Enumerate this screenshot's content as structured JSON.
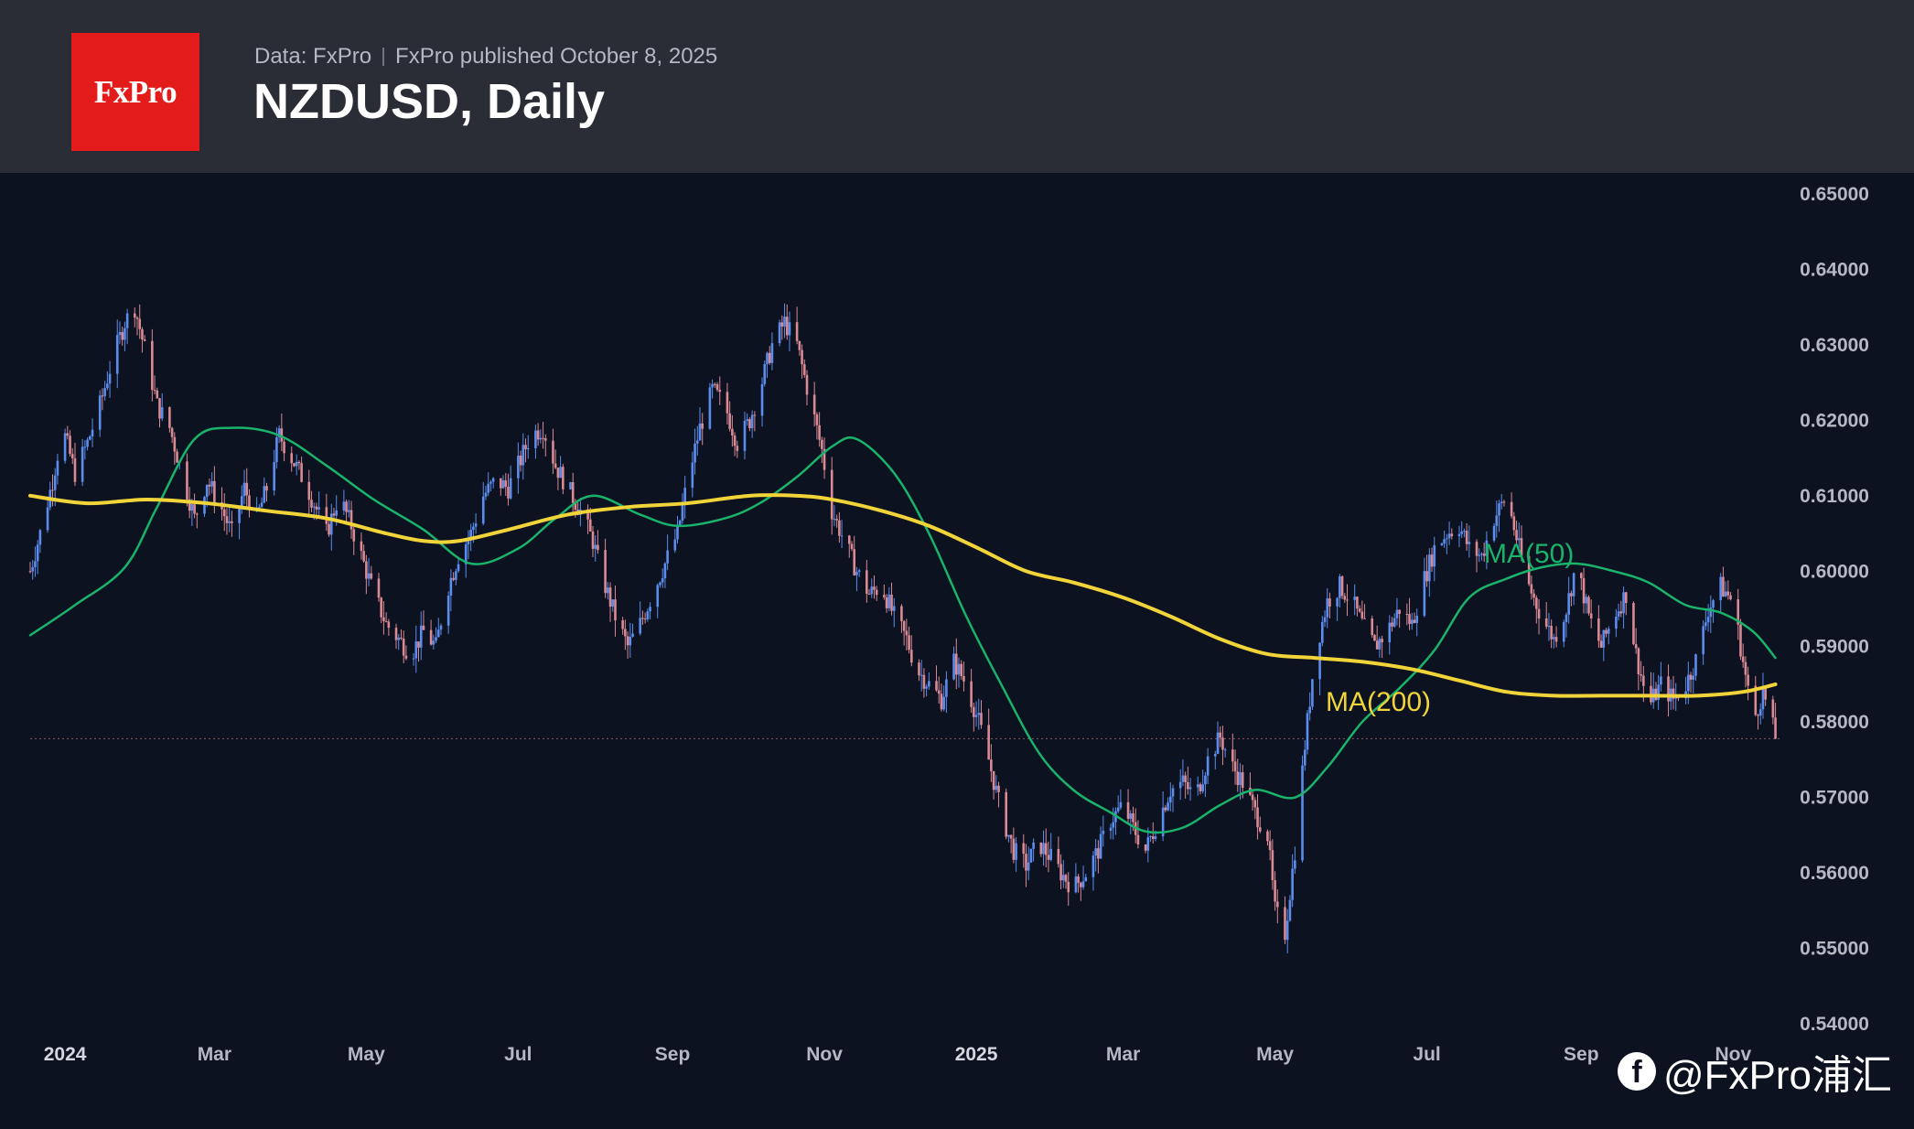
{
  "header": {
    "logo_text": "FxPro",
    "data_source": "Data: FxPro",
    "published": "FxPro published October 8, 2025",
    "title": "NZDUSD, Daily"
  },
  "watermark": {
    "icon": "facebook-icon",
    "text": "@FxPro浦汇"
  },
  "colors": {
    "background": "#0d1220",
    "header": "#2a2d36",
    "logo": "#e31b1b",
    "up_candle": "#5b8dee",
    "down_candle": "#d98a93",
    "ma50": "#19b36b",
    "ma200": "#f0d43a",
    "axis_text": "#b4b8c2"
  },
  "chart_data": {
    "type": "candlestick",
    "symbol": "NZDUSD",
    "timeframe": "Daily",
    "x_range": [
      "2023-12-18",
      "2025-11-20"
    ],
    "ylim": [
      0.54,
      0.65
    ],
    "yticks": [
      "0.65000",
      "0.64000",
      "0.63000",
      "0.62000",
      "0.61000",
      "0.60000",
      "0.59000",
      "0.58000",
      "0.57000",
      "0.56000",
      "0.55000",
      "0.54000"
    ],
    "xticks": [
      {
        "date": "2024-01-01",
        "label": "2024",
        "bold": true
      },
      {
        "date": "2024-03-01",
        "label": "Mar"
      },
      {
        "date": "2024-05-01",
        "label": "May"
      },
      {
        "date": "2024-07-01",
        "label": "Jul"
      },
      {
        "date": "2024-09-01",
        "label": "Sep"
      },
      {
        "date": "2024-11-01",
        "label": "Nov"
      },
      {
        "date": "2025-01-01",
        "label": "2025",
        "bold": true
      },
      {
        "date": "2025-03-01",
        "label": "Mar"
      },
      {
        "date": "2025-05-01",
        "label": "May"
      },
      {
        "date": "2025-07-01",
        "label": "Jul"
      },
      {
        "date": "2025-09-01",
        "label": "Sep"
      },
      {
        "date": "2025-11-01",
        "label": "Nov"
      }
    ],
    "last_price": 0.5778,
    "close_path": [
      [
        "2023-12-18",
        0.6
      ],
      [
        "2023-12-22",
        0.605
      ],
      [
        "2023-12-27",
        0.612
      ],
      [
        "2023-12-31",
        0.619
      ],
      [
        "2024-01-05",
        0.613
      ],
      [
        "2024-01-10",
        0.617
      ],
      [
        "2024-01-15",
        0.622
      ],
      [
        "2024-01-20",
        0.628
      ],
      [
        "2024-01-25",
        0.633
      ],
      [
        "2024-01-29",
        0.635
      ],
      [
        "2024-02-03",
        0.628
      ],
      [
        "2024-02-07",
        0.622
      ],
      [
        "2024-02-12",
        0.619
      ],
      [
        "2024-02-17",
        0.613
      ],
      [
        "2024-02-22",
        0.607
      ],
      [
        "2024-02-27",
        0.612
      ],
      [
        "2024-03-03",
        0.609
      ],
      [
        "2024-03-08",
        0.605
      ],
      [
        "2024-03-13",
        0.611
      ],
      [
        "2024-03-18",
        0.607
      ],
      [
        "2024-03-22",
        0.611
      ],
      [
        "2024-03-27",
        0.618
      ],
      [
        "2024-04-01",
        0.615
      ],
      [
        "2024-04-06",
        0.612
      ],
      [
        "2024-04-10",
        0.609
      ],
      [
        "2024-04-15",
        0.605
      ],
      [
        "2024-04-20",
        0.61
      ],
      [
        "2024-04-25",
        0.606
      ],
      [
        "2024-04-30",
        0.601
      ],
      [
        "2024-05-04",
        0.597
      ],
      [
        "2024-05-09",
        0.593
      ],
      [
        "2024-05-14",
        0.591
      ],
      [
        "2024-05-19",
        0.589
      ],
      [
        "2024-05-24",
        0.592
      ],
      [
        "2024-05-29",
        0.59
      ],
      [
        "2024-06-02",
        0.597
      ],
      [
        "2024-06-07",
        0.602
      ],
      [
        "2024-06-12",
        0.605
      ],
      [
        "2024-06-17",
        0.61
      ],
      [
        "2024-06-22",
        0.612
      ],
      [
        "2024-06-27",
        0.611
      ],
      [
        "2024-07-01",
        0.614
      ],
      [
        "2024-07-06",
        0.618
      ],
      [
        "2024-07-11",
        0.619
      ],
      [
        "2024-07-16",
        0.614
      ],
      [
        "2024-07-21",
        0.611
      ],
      [
        "2024-07-26",
        0.608
      ],
      [
        "2024-07-31",
        0.604
      ],
      [
        "2024-08-04",
        0.599
      ],
      [
        "2024-08-09",
        0.594
      ],
      [
        "2024-08-14",
        0.59
      ],
      [
        "2024-08-19",
        0.593
      ],
      [
        "2024-08-24",
        0.597
      ],
      [
        "2024-08-29",
        0.601
      ],
      [
        "2024-09-03",
        0.605
      ],
      [
        "2024-09-07",
        0.612
      ],
      [
        "2024-09-12",
        0.619
      ],
      [
        "2024-09-17",
        0.624
      ],
      [
        "2024-09-22",
        0.622
      ],
      [
        "2024-09-27",
        0.617
      ],
      [
        "2024-10-02",
        0.62
      ],
      [
        "2024-10-06",
        0.624
      ],
      [
        "2024-10-11",
        0.63
      ],
      [
        "2024-10-16",
        0.633
      ],
      [
        "2024-10-21",
        0.63
      ],
      [
        "2024-10-26",
        0.623
      ],
      [
        "2024-10-31",
        0.616
      ],
      [
        "2024-11-04",
        0.608
      ],
      [
        "2024-11-09",
        0.604
      ],
      [
        "2024-11-14",
        0.6
      ],
      [
        "2024-11-19",
        0.597
      ],
      [
        "2024-11-24",
        0.598
      ],
      [
        "2024-11-29",
        0.594
      ],
      [
        "2024-12-04",
        0.591
      ],
      [
        "2024-12-08",
        0.587
      ],
      [
        "2024-12-13",
        0.585
      ],
      [
        "2024-12-18",
        0.583
      ],
      [
        "2024-12-23",
        0.588
      ],
      [
        "2024-12-28",
        0.585
      ],
      [
        "2025-01-02",
        0.58
      ],
      [
        "2025-01-06",
        0.575
      ],
      [
        "2025-01-11",
        0.568
      ],
      [
        "2025-01-16",
        0.563
      ],
      [
        "2025-01-21",
        0.561
      ],
      [
        "2025-01-26",
        0.564
      ],
      [
        "2025-01-31",
        0.562
      ],
      [
        "2025-02-04",
        0.56
      ],
      [
        "2025-02-09",
        0.558
      ],
      [
        "2025-02-14",
        0.56
      ],
      [
        "2025-02-19",
        0.563
      ],
      [
        "2025-02-24",
        0.567
      ],
      [
        "2025-03-01",
        0.569
      ],
      [
        "2025-03-05",
        0.566
      ],
      [
        "2025-03-10",
        0.563
      ],
      [
        "2025-03-15",
        0.567
      ],
      [
        "2025-03-20",
        0.571
      ],
      [
        "2025-03-25",
        0.572
      ],
      [
        "2025-03-30",
        0.57
      ],
      [
        "2025-04-04",
        0.575
      ],
      [
        "2025-04-09",
        0.578
      ],
      [
        "2025-04-14",
        0.574
      ],
      [
        "2025-04-18",
        0.572
      ],
      [
        "2025-04-23",
        0.568
      ],
      [
        "2025-04-28",
        0.565
      ],
      [
        "2025-05-01",
        0.555
      ],
      [
        "2025-05-05",
        0.552
      ],
      [
        "2025-05-09",
        0.563
      ],
      [
        "2025-05-13",
        0.577
      ],
      [
        "2025-05-17",
        0.589
      ],
      [
        "2025-05-22",
        0.596
      ],
      [
        "2025-05-27",
        0.598
      ],
      [
        "2025-06-01",
        0.596
      ],
      [
        "2025-06-05",
        0.593
      ],
      [
        "2025-06-10",
        0.59
      ],
      [
        "2025-06-15",
        0.592
      ],
      [
        "2025-06-20",
        0.595
      ],
      [
        "2025-06-25",
        0.593
      ],
      [
        "2025-06-30",
        0.599
      ],
      [
        "2025-07-04",
        0.603
      ],
      [
        "2025-07-09",
        0.605
      ],
      [
        "2025-07-14",
        0.606
      ],
      [
        "2025-07-18",
        0.603
      ],
      [
        "2025-07-23",
        0.602
      ],
      [
        "2025-07-28",
        0.607
      ],
      [
        "2025-08-02",
        0.61
      ],
      [
        "2025-08-07",
        0.603
      ],
      [
        "2025-08-11",
        0.598
      ],
      [
        "2025-08-16",
        0.594
      ],
      [
        "2025-08-21",
        0.591
      ],
      [
        "2025-08-26",
        0.595
      ],
      [
        "2025-08-30",
        0.601
      ],
      [
        "2025-09-04",
        0.594
      ],
      [
        "2025-09-09",
        0.59
      ],
      [
        "2025-09-14",
        0.594
      ],
      [
        "2025-09-19",
        0.597
      ],
      [
        "2025-09-23",
        0.589
      ],
      [
        "2025-09-28",
        0.582
      ],
      [
        "2025-10-03",
        0.585
      ],
      [
        "2025-10-08",
        0.583
      ],
      [
        "2025-10-13",
        0.585
      ],
      [
        "2025-10-18",
        0.589
      ],
      [
        "2025-10-22",
        0.595
      ],
      [
        "2025-10-27",
        0.598
      ],
      [
        "2025-11-01",
        0.596
      ],
      [
        "2025-11-05",
        0.588
      ],
      [
        "2025-11-09",
        0.58
      ],
      [
        "2025-11-13",
        0.584
      ],
      [
        "2025-11-18",
        0.578
      ]
    ],
    "series": [
      {
        "name": "MA(50)",
        "label": "MA(50)",
        "points": [
          [
            "2023-12-18",
            0.5915
          ],
          [
            "2024-01-05",
            0.5955
          ],
          [
            "2024-01-25",
            0.6005
          ],
          [
            "2024-02-07",
            0.6085
          ],
          [
            "2024-02-22",
            0.6175
          ],
          [
            "2024-03-08",
            0.619
          ],
          [
            "2024-03-27",
            0.618
          ],
          [
            "2024-04-15",
            0.614
          ],
          [
            "2024-05-04",
            0.6095
          ],
          [
            "2024-05-24",
            0.6055
          ],
          [
            "2024-06-12",
            0.601
          ],
          [
            "2024-07-01",
            0.603
          ],
          [
            "2024-07-16",
            0.607
          ],
          [
            "2024-07-31",
            0.61
          ],
          [
            "2024-08-19",
            0.6075
          ],
          [
            "2024-09-03",
            0.606
          ],
          [
            "2024-09-22",
            0.607
          ],
          [
            "2024-10-06",
            0.609
          ],
          [
            "2024-10-21",
            0.6125
          ],
          [
            "2024-11-04",
            0.6165
          ],
          [
            "2024-11-14",
            0.6175
          ],
          [
            "2024-11-29",
            0.613
          ],
          [
            "2024-12-13",
            0.605
          ],
          [
            "2024-12-28",
            0.594
          ],
          [
            "2025-01-11",
            0.585
          ],
          [
            "2025-01-26",
            0.576
          ],
          [
            "2025-02-09",
            0.571
          ],
          [
            "2025-02-24",
            0.568
          ],
          [
            "2025-03-10",
            0.5655
          ],
          [
            "2025-03-25",
            0.566
          ],
          [
            "2025-04-09",
            0.569
          ],
          [
            "2025-04-23",
            0.571
          ],
          [
            "2025-05-09",
            0.57
          ],
          [
            "2025-05-22",
            0.574
          ],
          [
            "2025-06-05",
            0.58
          ],
          [
            "2025-06-20",
            0.5845
          ],
          [
            "2025-07-04",
            0.5895
          ],
          [
            "2025-07-18",
            0.5965
          ],
          [
            "2025-08-02",
            0.599
          ],
          [
            "2025-08-16",
            0.6005
          ],
          [
            "2025-08-30",
            0.601
          ],
          [
            "2025-09-14",
            0.6
          ],
          [
            "2025-09-28",
            0.5985
          ],
          [
            "2025-10-13",
            0.5955
          ],
          [
            "2025-10-27",
            0.5945
          ],
          [
            "2025-11-09",
            0.592
          ],
          [
            "2025-11-18",
            0.5885
          ]
        ]
      },
      {
        "name": "MA(200)",
        "label": "MA(200)",
        "points": [
          [
            "2023-12-18",
            0.61
          ],
          [
            "2024-01-10",
            0.609
          ],
          [
            "2024-02-03",
            0.6095
          ],
          [
            "2024-02-27",
            0.609
          ],
          [
            "2024-03-22",
            0.608
          ],
          [
            "2024-04-15",
            0.607
          ],
          [
            "2024-05-09",
            0.605
          ],
          [
            "2024-05-24",
            0.604
          ],
          [
            "2024-06-07",
            0.604
          ],
          [
            "2024-06-27",
            0.6055
          ],
          [
            "2024-07-21",
            0.6075
          ],
          [
            "2024-08-14",
            0.6085
          ],
          [
            "2024-09-07",
            0.609
          ],
          [
            "2024-10-02",
            0.61
          ],
          [
            "2024-10-21",
            0.61
          ],
          [
            "2024-11-04",
            0.6095
          ],
          [
            "2024-11-24",
            0.608
          ],
          [
            "2024-12-13",
            0.606
          ],
          [
            "2025-01-02",
            0.603
          ],
          [
            "2025-01-21",
            0.6
          ],
          [
            "2025-02-09",
            0.5985
          ],
          [
            "2025-03-01",
            0.5965
          ],
          [
            "2025-03-20",
            0.594
          ],
          [
            "2025-04-09",
            0.591
          ],
          [
            "2025-04-28",
            0.589
          ],
          [
            "2025-05-17",
            0.5885
          ],
          [
            "2025-06-05",
            0.588
          ],
          [
            "2025-06-25",
            0.587
          ],
          [
            "2025-07-14",
            0.5855
          ],
          [
            "2025-08-02",
            0.584
          ],
          [
            "2025-08-21",
            0.5835
          ],
          [
            "2025-09-09",
            0.5835
          ],
          [
            "2025-09-28",
            0.5835
          ],
          [
            "2025-10-18",
            0.5835
          ],
          [
            "2025-11-05",
            0.584
          ],
          [
            "2025-11-18",
            0.585
          ]
        ]
      }
    ]
  }
}
